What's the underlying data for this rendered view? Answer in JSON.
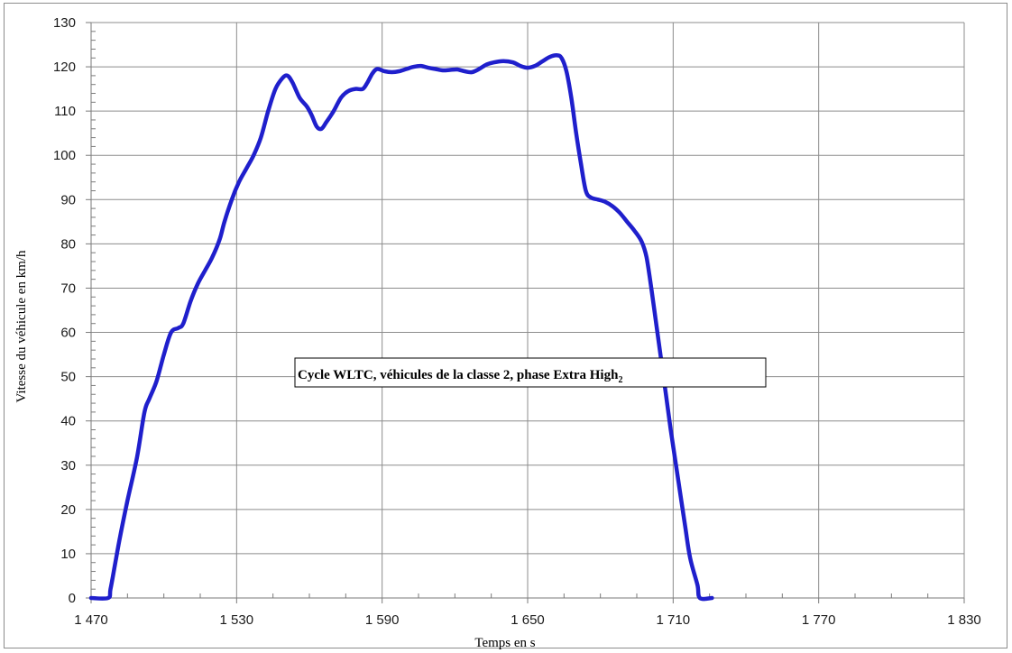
{
  "chart_data": {
    "type": "line",
    "title": "",
    "xlabel": "Temps en s",
    "ylabel": "Vitesse du véhicule en km/h",
    "xlim": [
      1470,
      1830
    ],
    "ylim": [
      0,
      130
    ],
    "x_ticks": [
      1470,
      1530,
      1590,
      1650,
      1710,
      1770,
      1830
    ],
    "x_tick_labels": [
      "1 470",
      "1 530",
      "1 590",
      "1 650",
      "1 710",
      "1 770",
      "1 830"
    ],
    "y_ticks": [
      0,
      10,
      20,
      30,
      40,
      50,
      60,
      70,
      80,
      90,
      100,
      110,
      120,
      130
    ],
    "y_tick_labels": [
      "0",
      "10",
      "20",
      "30",
      "40",
      "50",
      "60",
      "70",
      "80",
      "90",
      "100",
      "110",
      "120",
      "130"
    ],
    "grid": true,
    "annotation": {
      "text": "Cycle WLTC, véhicules de la classe 2, phase Extra High",
      "subscript": "2"
    },
    "series": [
      {
        "color": "#1f1fcc",
        "points": [
          [
            1470,
            0
          ],
          [
            1477,
            0
          ],
          [
            1478,
            2
          ],
          [
            1480,
            8
          ],
          [
            1482,
            14
          ],
          [
            1485,
            22
          ],
          [
            1489,
            32
          ],
          [
            1492,
            42
          ],
          [
            1494,
            45
          ],
          [
            1497,
            49
          ],
          [
            1500,
            55
          ],
          [
            1503,
            60
          ],
          [
            1506,
            61
          ],
          [
            1508,
            62
          ],
          [
            1511,
            67
          ],
          [
            1514,
            71
          ],
          [
            1517,
            74
          ],
          [
            1520,
            77
          ],
          [
            1523,
            81
          ],
          [
            1525,
            85
          ],
          [
            1528,
            90
          ],
          [
            1531,
            94
          ],
          [
            1534,
            97
          ],
          [
            1537,
            100
          ],
          [
            1540,
            104
          ],
          [
            1543,
            110
          ],
          [
            1546,
            115
          ],
          [
            1549,
            117.5
          ],
          [
            1551,
            118
          ],
          [
            1553,
            116.5
          ],
          [
            1556,
            113
          ],
          [
            1559,
            111
          ],
          [
            1561,
            109
          ],
          [
            1563,
            106.5
          ],
          [
            1565,
            106
          ],
          [
            1567,
            107.5
          ],
          [
            1570,
            110
          ],
          [
            1573,
            113
          ],
          [
            1576,
            114.5
          ],
          [
            1579,
            115
          ],
          [
            1582,
            115
          ],
          [
            1584,
            116.5
          ],
          [
            1586,
            118.5
          ],
          [
            1588,
            119.5
          ],
          [
            1591,
            119
          ],
          [
            1594,
            118.8
          ],
          [
            1597,
            119
          ],
          [
            1600,
            119.5
          ],
          [
            1603,
            120
          ],
          [
            1606,
            120.2
          ],
          [
            1609,
            119.8
          ],
          [
            1612,
            119.5
          ],
          [
            1615,
            119.2
          ],
          [
            1618,
            119.3
          ],
          [
            1621,
            119.4
          ],
          [
            1624,
            119
          ],
          [
            1627,
            118.8
          ],
          [
            1630,
            119.5
          ],
          [
            1633,
            120.5
          ],
          [
            1636,
            121
          ],
          [
            1640,
            121.3
          ],
          [
            1644,
            121
          ],
          [
            1647,
            120.2
          ],
          [
            1650,
            119.8
          ],
          [
            1653,
            120.2
          ],
          [
            1656,
            121.2
          ],
          [
            1659,
            122.2
          ],
          [
            1662,
            122.6
          ],
          [
            1664,
            122
          ],
          [
            1666,
            119
          ],
          [
            1668,
            113
          ],
          [
            1670,
            105
          ],
          [
            1672,
            98
          ],
          [
            1674,
            92
          ],
          [
            1676,
            90.5
          ],
          [
            1679,
            90
          ],
          [
            1682,
            89.5
          ],
          [
            1685,
            88.5
          ],
          [
            1688,
            87
          ],
          [
            1691,
            85
          ],
          [
            1694,
            83
          ],
          [
            1697,
            80.5
          ],
          [
            1699,
            77
          ],
          [
            1701,
            70
          ],
          [
            1703,
            62
          ],
          [
            1705,
            54
          ],
          [
            1707,
            46
          ],
          [
            1709,
            38
          ],
          [
            1712,
            27
          ],
          [
            1715,
            16
          ],
          [
            1717,
            9
          ],
          [
            1720,
            3
          ],
          [
            1721,
            0
          ],
          [
            1726,
            0
          ]
        ]
      }
    ]
  }
}
